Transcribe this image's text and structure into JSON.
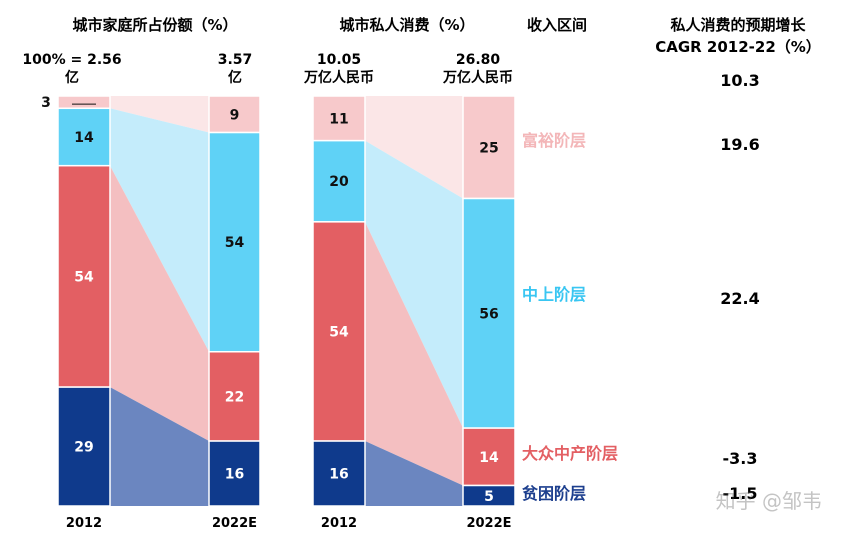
{
  "chart_data": [
    {
      "type": "bar",
      "title": "城市家庭所占份额（%）",
      "categories": [
        "2012",
        "2022E"
      ],
      "totals": [
        "100% = 2.56\n亿",
        "3.57\n亿"
      ],
      "series": [
        {
          "name": "富裕阶层",
          "values": [
            3,
            9
          ]
        },
        {
          "name": "中上阶层",
          "values": [
            14,
            54
          ]
        },
        {
          "name": "大众中产阶层",
          "values": [
            54,
            22
          ]
        },
        {
          "name": "贫困阶层",
          "values": [
            29,
            16
          ]
        }
      ]
    },
    {
      "type": "bar",
      "title": "城市私人消费（%）",
      "categories": [
        "2012",
        "2022E"
      ],
      "totals": [
        "10.05\n万亿人民币",
        "26.80\n万亿人民币"
      ],
      "series": [
        {
          "name": "富裕阶层",
          "values": [
            11,
            25
          ]
        },
        {
          "name": "中上阶层",
          "values": [
            20,
            56
          ]
        },
        {
          "name": "大众中产阶层",
          "values": [
            54,
            14
          ]
        },
        {
          "name": "贫困阶层",
          "values": [
            16,
            5
          ]
        }
      ]
    }
  ],
  "income_header": "收入区间",
  "growth_header": [
    "私人消费的预期增长",
    "CAGR 2012-22（%）"
  ],
  "growth_values": [
    "10.3",
    "19.6",
    "22.4",
    "-3.3",
    "-1.5"
  ],
  "tier_labels": [
    "富裕阶层",
    "中上阶层",
    "大众中产阶层",
    "贫困阶层"
  ],
  "watermark": "知乎 @邹韦",
  "colors": {
    "rich": "#f7c9cb",
    "rich_band": "#fbe6e7",
    "upper": "#5fd2f6",
    "upper_band": "#c4ecfb",
    "mass": "#e35f63",
    "mass_band": "#f4bfc1",
    "poor": "#0f3a8c",
    "poor_band": "#6b86c0",
    "rich_text": "#f3b6b8",
    "upper_text": "#39c6f2",
    "mass_text": "#e35f63",
    "poor_text": "#1d3f8e"
  }
}
